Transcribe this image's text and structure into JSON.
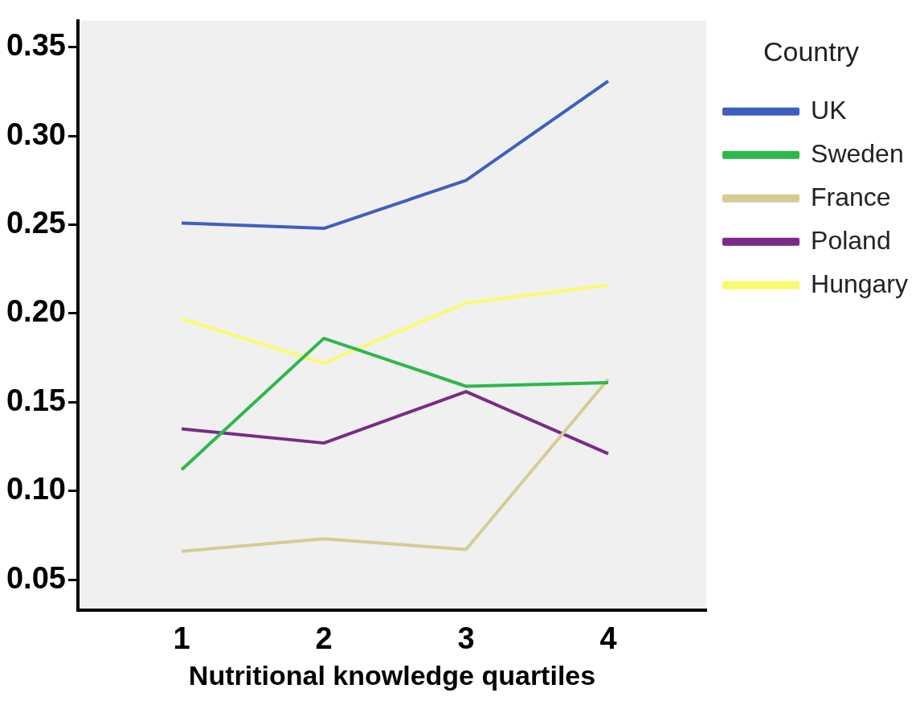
{
  "chart_data": {
    "type": "line",
    "xlabel": "Nutritional knowledge quartiles",
    "legend_title": "Country",
    "x": [
      1,
      2,
      3,
      4
    ],
    "xlim": [
      0.27,
      4.69
    ],
    "xticks": [
      1,
      2,
      3,
      4
    ],
    "ylim": [
      0.033,
      0.365
    ],
    "yticks": [
      {
        "value": 0.05,
        "label": "0.05"
      },
      {
        "value": 0.1,
        "label": "0.10"
      },
      {
        "value": 0.15,
        "label": "0.15"
      },
      {
        "value": 0.2,
        "label": "0.20"
      },
      {
        "value": 0.25,
        "label": "0.25"
      },
      {
        "value": 0.3,
        "label": "0.30"
      },
      {
        "value": 0.35,
        "label": "0.35"
      }
    ],
    "grid": false,
    "legend": "top right",
    "marker": "none",
    "line_style": "solid",
    "series": [
      {
        "name": "UK",
        "color": "#3f5fbf",
        "values": [
          0.251,
          0.248,
          0.275,
          0.331
        ]
      },
      {
        "name": "Sweden",
        "color": "#2db84b",
        "values": [
          0.112,
          0.186,
          0.159,
          0.161
        ]
      },
      {
        "name": "France",
        "color": "#d4cc94",
        "values": [
          0.066,
          0.073,
          0.067,
          0.163
        ]
      },
      {
        "name": "Poland",
        "color": "#7a2b86",
        "values": [
          0.135,
          0.127,
          0.156,
          0.121
        ]
      },
      {
        "name": "Hungary",
        "color": "#fafa6e",
        "values": [
          0.197,
          0.172,
          0.206,
          0.216
        ]
      }
    ]
  }
}
